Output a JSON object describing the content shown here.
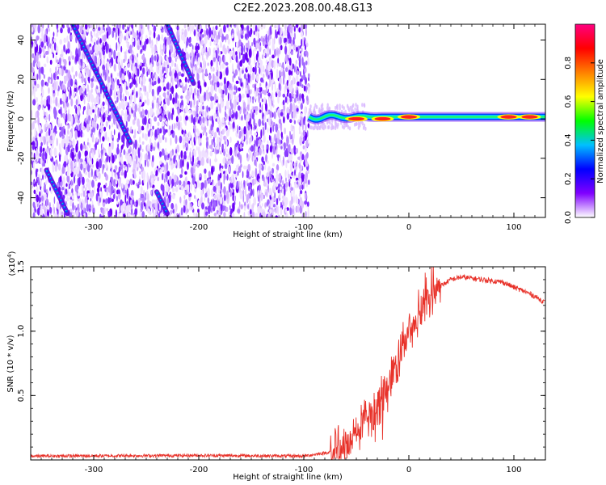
{
  "title": "C2E2.2023.208.00.48.G13",
  "chart_data": [
    {
      "type": "heatmap",
      "xlabel": "Height of straight line (km)",
      "ylabel": "Frequency (Hz)",
      "xlim": [
        -360,
        130
      ],
      "ylim": [
        -50,
        48
      ],
      "xticks": [
        -300,
        -200,
        -100,
        0,
        100
      ],
      "yticks": [
        -40,
        -20,
        0,
        20,
        40
      ],
      "colorbar": {
        "label": "Normalized spectral amplitude",
        "range": [
          0,
          1
        ],
        "ticks": [
          0.0,
          0.2,
          0.4,
          0.6,
          0.8
        ],
        "colors": [
          "#ffffff",
          "#8000ff",
          "#0000ff",
          "#00c0ff",
          "#00ff00",
          "#ffff00",
          "#ff8000",
          "#ff0000",
          "#ff0080"
        ]
      },
      "features": {
        "noise_region_x": [
          -360,
          -95
        ],
        "carrier_line_x": [
          -95,
          130
        ],
        "carrier_frequency_hz": 1,
        "diagonal_tracks": [
          {
            "x": [
              -345,
              -325
            ],
            "y": [
              -26,
              -48
            ]
          },
          {
            "x": [
              -320,
              -265
            ],
            "y": [
              48,
              -12
            ]
          },
          {
            "x": [
              -240,
              -230
            ],
            "y": [
              -37,
              -48
            ]
          },
          {
            "x": [
              -230,
              -205
            ],
            "y": [
              48,
              18
            ]
          }
        ],
        "carrier_hotspots": [
          {
            "x": -50,
            "y": 0
          },
          {
            "x": -25,
            "y": 0
          },
          {
            "x": 0,
            "y": 1
          },
          {
            "x": 95,
            "y": 1
          },
          {
            "x": 115,
            "y": 1
          }
        ]
      }
    },
    {
      "type": "line",
      "xlabel": "Height of straight line (km)",
      "ylabel": "SNR (10 * v/v)",
      "multiplier": "(x10^4)",
      "multiplier_text": {
        "base": "(x10",
        "exp": "4",
        "close": ")"
      },
      "xlim": [
        -360,
        130
      ],
      "ylim": [
        0,
        1.5
      ],
      "xticks": [
        -300,
        -200,
        -100,
        0,
        100
      ],
      "yticks": [
        0.5,
        1.0,
        1.5
      ],
      "series": [
        {
          "color": "#e8322a",
          "x": [
            -360,
            -200,
            -100,
            -75,
            -60,
            -50,
            -40,
            -30,
            -20,
            -10,
            0,
            10,
            20,
            30,
            40,
            50,
            60,
            70,
            80,
            90,
            95,
            100,
            110,
            120,
            130
          ],
          "y": [
            0.03,
            0.035,
            0.03,
            0.06,
            0.12,
            0.22,
            0.32,
            0.4,
            0.55,
            0.8,
            1.0,
            1.1,
            1.25,
            1.35,
            1.4,
            1.42,
            1.41,
            1.4,
            1.39,
            1.38,
            1.36,
            1.34,
            1.31,
            1.27,
            1.22
          ]
        }
      ]
    }
  ]
}
